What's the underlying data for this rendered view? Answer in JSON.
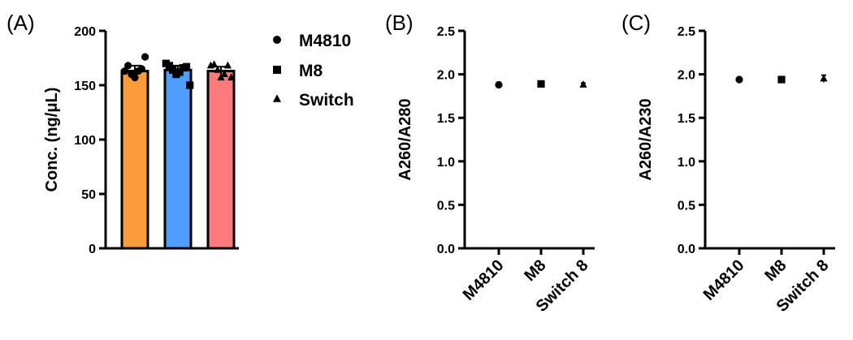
{
  "chart_data": [
    {
      "panel": "(A)",
      "type": "bar",
      "ylabel": "Conc. (ng/μL)",
      "ylim": [
        0,
        200
      ],
      "yticks": [
        "0",
        "50",
        "100",
        "150",
        "200"
      ],
      "categories": [
        "M4810",
        "M8",
        "Switch"
      ],
      "values": [
        163,
        164,
        163
      ],
      "errors": [
        5,
        4,
        4
      ],
      "colors": [
        "#fb9c3b",
        "#4f9dfd",
        "#fd7a7b"
      ],
      "points": [
        [
          163,
          168,
          160,
          157,
          163,
          165,
          176
        ],
        [
          170,
          168,
          164,
          160,
          162,
          166,
          167,
          150
        ],
        [
          168,
          169,
          164,
          157,
          160,
          168,
          157
        ]
      ],
      "legend": {
        "position": "right",
        "entries": [
          {
            "label": "M4810",
            "marker": "circle"
          },
          {
            "label": "M8",
            "marker": "square"
          },
          {
            "label": "Switch",
            "marker": "triangle"
          }
        ]
      }
    },
    {
      "panel": "(B)",
      "type": "scatter",
      "ylabel": "A260/A280",
      "ylim": [
        0,
        2.5
      ],
      "yticks": [
        "0.0",
        "0.5",
        "1.0",
        "1.5",
        "2.0",
        "2.5"
      ],
      "categories": [
        "M4810",
        "M8",
        "Switch 8"
      ],
      "values": [
        1.88,
        1.89,
        1.88
      ],
      "errors": [
        0.01,
        0.01,
        0.02
      ],
      "markers": [
        "circle",
        "square",
        "triangle"
      ]
    },
    {
      "panel": "(C)",
      "type": "scatter",
      "ylabel": "A260/A230",
      "ylim": [
        0,
        2.5
      ],
      "yticks": [
        "0.0",
        "0.5",
        "1.0",
        "1.5",
        "2.0",
        "2.5"
      ],
      "categories": [
        "M4810",
        "M8",
        "Switch 8"
      ],
      "values": [
        1.94,
        1.94,
        1.95
      ],
      "errors": [
        0.01,
        0.01,
        0.04
      ],
      "markers": [
        "circle",
        "square",
        "triangle"
      ]
    }
  ]
}
